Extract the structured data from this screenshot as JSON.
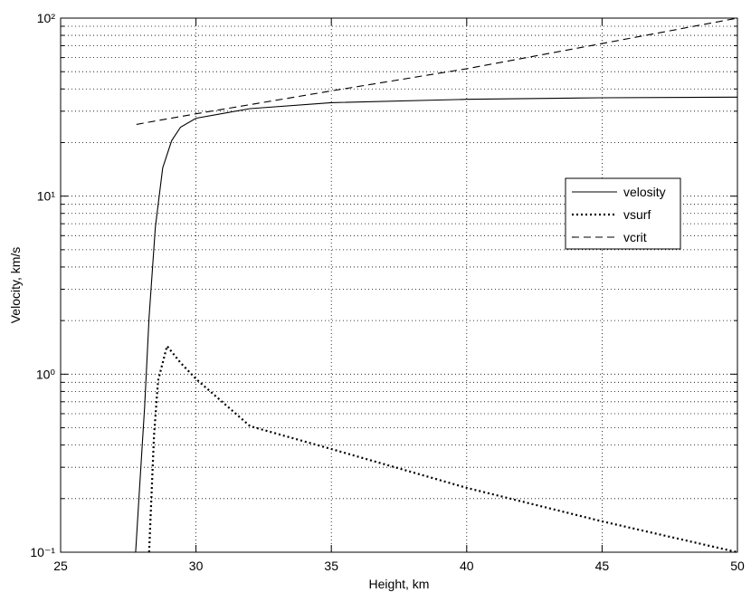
{
  "chart_data": {
    "type": "line",
    "xlabel": "Height,  km",
    "ylabel": "Velocity,  km/s",
    "xlim": [
      25,
      50
    ],
    "xticks": [
      25,
      30,
      35,
      40,
      45,
      50
    ],
    "ylim": [
      0.1,
      100
    ],
    "yscale": "log",
    "yticks": [
      {
        "value": 0.1,
        "label": "10⁻¹"
      },
      {
        "value": 1,
        "label": "10⁰"
      },
      {
        "value": 10,
        "label": "10¹"
      },
      {
        "value": 100,
        "label": "10²"
      }
    ],
    "yminorticks": [
      0.2,
      0.3,
      0.4,
      0.5,
      0.6,
      0.7,
      0.8,
      0.9,
      2,
      3,
      4,
      5,
      6,
      7,
      8,
      9,
      20,
      30,
      40,
      50,
      60,
      70,
      80,
      90
    ],
    "grid": true,
    "legend": "right",
    "series": [
      {
        "name": "velosity",
        "color": "#000000",
        "style": "solid",
        "x": [
          27.77,
          27.93,
          28.1,
          28.27,
          28.5,
          28.77,
          29.1,
          29.43,
          30,
          32,
          35,
          40,
          45,
          50
        ],
        "values": [
          0.1,
          0.25,
          0.65,
          2.1,
          6.7,
          14.4,
          20.5,
          24.4,
          27.4,
          31,
          33.5,
          35,
          35.7,
          36
        ]
      },
      {
        "name": "vsurf",
        "color": "#000000",
        "style": "dotted",
        "x": [
          28.27,
          28.45,
          28.6,
          28.93,
          29.43,
          30,
          32,
          35,
          40,
          45,
          50
        ],
        "values": [
          0.1,
          0.45,
          0.92,
          1.44,
          1.16,
          0.94,
          0.51,
          0.38,
          0.23,
          0.149,
          0.1
        ]
      },
      {
        "name": "vcrit",
        "color": "#000000",
        "style": "dashed",
        "x": [
          27.8,
          30,
          35,
          40,
          45,
          50
        ],
        "values": [
          25.3,
          29,
          39,
          52,
          72,
          100
        ]
      }
    ]
  }
}
